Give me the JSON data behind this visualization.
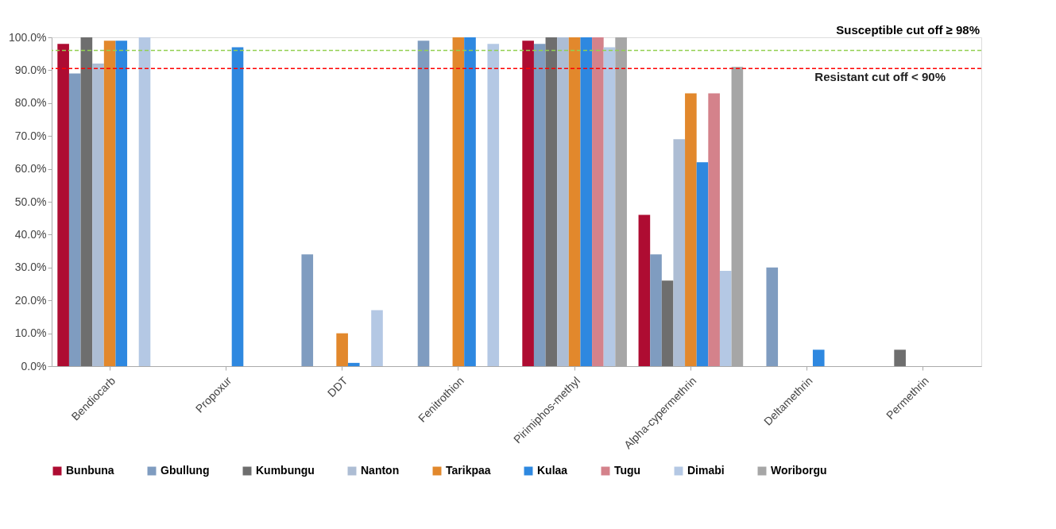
{
  "chart_data": {
    "type": "bar",
    "categories": [
      "Bendiocarb",
      "Propoxur",
      "DDT",
      "Fenitrothion",
      "Pirimiphos-methyl",
      "Alpha-cypermethrin",
      "Deltamethrin",
      "Permethrin"
    ],
    "series": [
      {
        "name": "Bunbuna",
        "color": "#ae0c32",
        "values": [
          98,
          null,
          null,
          null,
          99,
          46,
          null,
          null
        ]
      },
      {
        "name": "Gbullung",
        "color": "#7f9cc0",
        "values": [
          89,
          null,
          34,
          99,
          98,
          34,
          30,
          null
        ]
      },
      {
        "name": "Kumbungu",
        "color": "#6e6e6e",
        "values": [
          100,
          null,
          null,
          null,
          100,
          26,
          null,
          5
        ]
      },
      {
        "name": "Nanton",
        "color": "#adbdd4",
        "values": [
          92,
          null,
          null,
          null,
          100,
          69,
          null,
          null
        ]
      },
      {
        "name": "Tarikpaa",
        "color": "#e2882c",
        "values": [
          99,
          null,
          10,
          100,
          100,
          83,
          null,
          null
        ]
      },
      {
        "name": "Kulaa",
        "color": "#2e88e0",
        "values": [
          99,
          97,
          1,
          100,
          100,
          62,
          5,
          null
        ]
      },
      {
        "name": "Tugu",
        "color": "#d4828b",
        "values": [
          null,
          null,
          null,
          null,
          100,
          83,
          null,
          null
        ]
      },
      {
        "name": "Dimabi",
        "color": "#b4c8e4",
        "values": [
          100,
          null,
          17,
          98,
          97,
          29,
          null,
          null
        ]
      },
      {
        "name": "Woriborgu",
        "color": "#a6a6a6",
        "values": [
          null,
          null,
          null,
          null,
          100,
          91,
          null,
          null
        ]
      }
    ],
    "ylim": [
      0,
      100
    ],
    "yticks": [
      {
        "value": 0,
        "label": "0.0%"
      },
      {
        "value": 10,
        "label": "10.0%"
      },
      {
        "value": 20,
        "label": "20.0%"
      },
      {
        "value": 30,
        "label": "30.0%"
      },
      {
        "value": 40,
        "label": "40.0%"
      },
      {
        "value": 50,
        "label": "50.0%"
      },
      {
        "value": 60,
        "label": "60.0%"
      },
      {
        "value": 70,
        "label": "70.0%"
      },
      {
        "value": 80,
        "label": "80.0%"
      },
      {
        "value": 90,
        "label": "90.0%"
      },
      {
        "value": 100,
        "label": "100.0%"
      }
    ],
    "ref_lines": [
      {
        "axis": "y",
        "value": 96,
        "label": "Susceptible cut off ≥ 98%",
        "color": "#92d050",
        "line_style": "dashed"
      },
      {
        "axis": "y",
        "value": 90.5,
        "label": "Resistant cut off < 90%",
        "color": "#ff0000",
        "line_style": "dashed"
      }
    ],
    "grid": false,
    "legend": "bottom"
  }
}
